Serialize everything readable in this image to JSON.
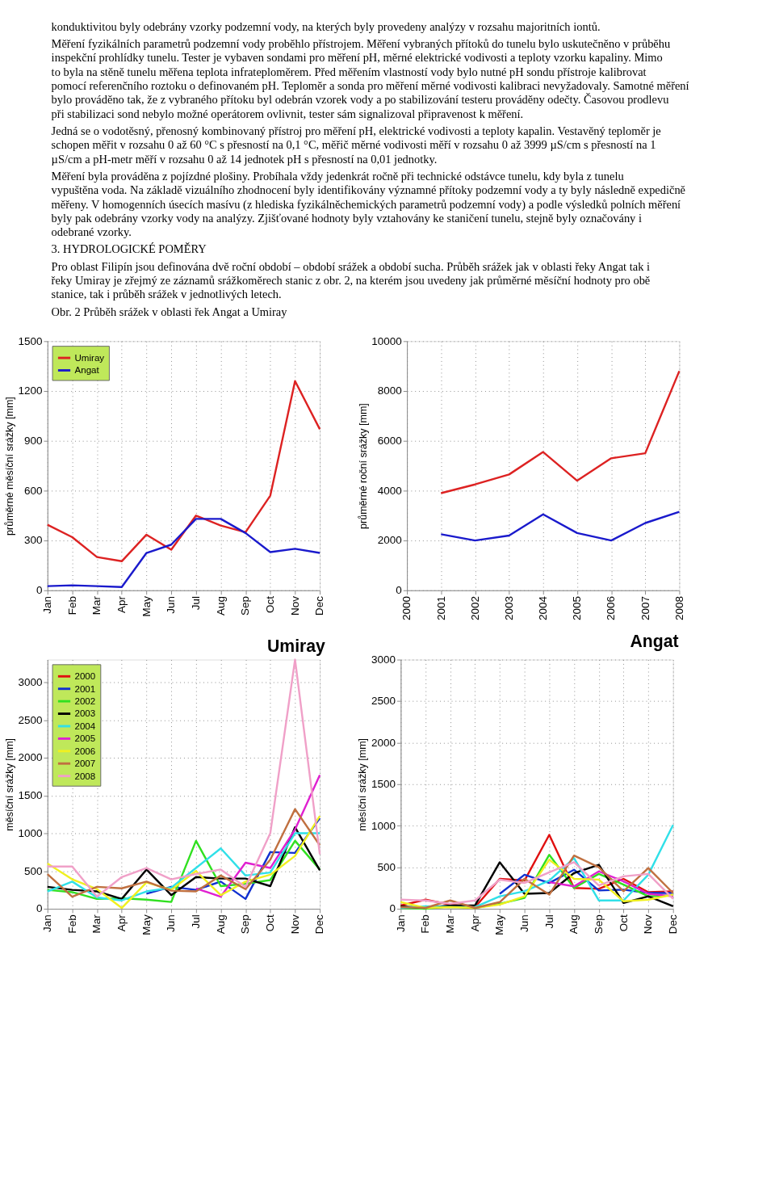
{
  "chart_data": [
    {
      "type": "other",
      "annotations": [
        "konduktivitou byly odebrány vzorky podzemní vody, na kterých byly provedeny analýzy v rozsahu majoritních iontů.",
        "Měření fyzikálních parametrů podzemní vody proběhlo přístrojem. Měření vybraných přítoků do tunelu bylo uskutečněno v průběhu inspekční prohlídky tunelu. Tester je vybaven sondami pro měření pH, měrné elektrické vodivosti a teploty vzorku kapaliny. Mimo to byla na stěně tunelu měřena teplota infrateploměrem. Před měřením vlastností vody bylo nutné pH sondu přístroje kalibrovat pomocí referenčního roztoku o definovaném pH. Teploměr a sonda pro měření měrné vodivosti kalibraci nevyžadovaly. Samotné měření bylo prováděno tak, že z vybraného přítoku byl odebrán vzorek vody a po stabilizování testeru prováděny odečty. Časovou prodlevu při stabilizaci sond nebylo možné operátorem ovlivnit, tester sám signalizoval připravenost k měření.",
        "Jedná se o vodotěsný, přenosný kombinovaný přístroj pro měření pH, elektrické vodivosti a teploty kapalin. Vestavěný teploměr je schopen měřit v rozsahu 0 až 60 °C s přesností na 0,1 °C, měřič měrné vodivosti měří v rozsahu 0 až 3999 µS/cm s přesností na 1 µS/cm a pH-metr měří v rozsahu 0 až 14 jednotek pH s přesností na 0,01 jednotky.",
        "Měření byla prováděna z pojízdné plošiny. Probíhala vždy jedenkrát ročně při technické odstávce tunelu, kdy byla z tunelu vypuštěna voda. Na základě vizuálního zhodnocení byly identifikovány významné přítoky podzemní vody a ty byly následně expedičně měřeny. V homogenních úsecích masívu (z hlediska fyzikálněchemických parametrů podzemní vody) a podle výsledků polních měření byly pak odebrány vzorky vody na analýzy. Zjišťované hodnoty byly vztahovány ke staničení tunelu, stejně byly označovány i odebrané vzorky.",
        "3. HYDROLOGICKÉ POMĚRY",
        "Pro oblast Filipín jsou definována dvě roční období – období srážek a období sucha. Průběh srážek jak v oblasti řeky Angat tak i řeky Umiray je zřejmý ze záznamů srážkoměrech stanic z obr. 2, na kterém jsou uvedeny jak průměrné měsíční hodnoty pro obě stanice, tak i průběh srážek v jednotlivých letech.",
        "Obr. 2  Průběh srážek v oblasti řek Angat a Umiray"
      ]
    },
    {
      "type": "line",
      "ylabel": "průměrné měsíční srážky [mm]",
      "categories": [
        "Jan",
        "Feb",
        "Mar",
        "Apr",
        "May",
        "Jun",
        "Jul",
        "Aug",
        "Sep",
        "Oct",
        "Nov",
        "Dec"
      ],
      "ylim": [
        0,
        1500
      ],
      "yticks": [
        0,
        300,
        600,
        900,
        1200,
        1500
      ],
      "grid": true,
      "legend": "top left",
      "series": [
        {
          "name": "Umiray",
          "color": "#dd2222",
          "values": [
            395,
            320,
            200,
            175,
            335,
            245,
            450,
            390,
            350,
            570,
            1260,
            970
          ]
        },
        {
          "name": "Angat",
          "color": "#1a1acc",
          "values": [
            25,
            30,
            25,
            20,
            225,
            275,
            430,
            430,
            345,
            230,
            250,
            225
          ]
        }
      ]
    },
    {
      "type": "line",
      "ylabel": "průměrné roční srážky [mm]",
      "x": [
        2001,
        2002,
        2003,
        2004,
        2005,
        2006,
        2007,
        2008
      ],
      "xlim": [
        2000,
        2008
      ],
      "xticks": [
        2000,
        2001,
        2002,
        2003,
        2004,
        2005,
        2006,
        2007,
        2008
      ],
      "ylim": [
        0,
        10000
      ],
      "yticks": [
        0,
        2000,
        4000,
        6000,
        8000,
        10000
      ],
      "grid": true,
      "series": [
        {
          "color": "#dd2222",
          "values": [
            3900,
            4250,
            4650,
            5550,
            4400,
            5300,
            5500,
            8800
          ]
        },
        {
          "color": "#1a1acc",
          "values": [
            2250,
            2000,
            2200,
            3050,
            2300,
            2000,
            2700,
            3150
          ]
        }
      ]
    },
    {
      "type": "line",
      "title": "Umiray",
      "ylabel": "měsíční srážky [mm]",
      "categories": [
        "Jan",
        "Feb",
        "Mar",
        "Apr",
        "May",
        "Jun",
        "Jul",
        "Aug",
        "Sep",
        "Oct",
        "Nov",
        "Dec"
      ],
      "ylim": [
        0,
        3300
      ],
      "yticks": [
        0,
        500,
        1000,
        1500,
        2000,
        2500,
        3000
      ],
      "grid": true,
      "legend": "top left",
      "series": [
        {
          "name": "2000",
          "color": "#e01010",
          "values": [
            null,
            null,
            null,
            null,
            null,
            null,
            null,
            null,
            null,
            null,
            null,
            null
          ]
        },
        {
          "name": "2001",
          "color": "#1030d0",
          "values": [
            null,
            null,
            null,
            null,
            200,
            290,
            250,
            360,
            130,
            750,
            740,
            1200
          ]
        },
        {
          "name": "2002",
          "color": "#30e020",
          "values": [
            250,
            220,
            130,
            140,
            120,
            90,
            900,
            300,
            330,
            380,
            900,
            520
          ]
        },
        {
          "name": "2003",
          "color": "#000000",
          "values": [
            290,
            250,
            230,
            130,
            520,
            180,
            420,
            400,
            400,
            300,
            1080,
            510
          ]
        },
        {
          "name": "2004",
          "color": "#30e0e8",
          "values": [
            230,
            360,
            150,
            110,
            230,
            280,
            540,
            800,
            440,
            480,
            1000,
            1000
          ]
        },
        {
          "name": "2005",
          "color": "#e020d0",
          "values": [
            null,
            null,
            null,
            null,
            null,
            null,
            270,
            160,
            610,
            540,
            1050,
            1770
          ]
        },
        {
          "name": "2006",
          "color": "#f0f020",
          "values": [
            600,
            390,
            260,
            10,
            350,
            250,
            500,
            180,
            360,
            450,
            700,
            1230
          ]
        },
        {
          "name": "2007",
          "color": "#c07040",
          "values": [
            460,
            160,
            290,
            270,
            360,
            240,
            230,
            440,
            260,
            650,
            1320,
            840
          ]
        },
        {
          "name": "2008",
          "color": "#f0a0c8",
          "values": [
            560,
            560,
            160,
            420,
            540,
            390,
            460,
            520,
            290,
            1000,
            3300,
            720
          ]
        }
      ]
    },
    {
      "type": "line",
      "title": "Angat",
      "ylabel": "měsíční srážky [mm]",
      "categories": [
        "Jan",
        "Feb",
        "Mar",
        "Apr",
        "May",
        "Jun",
        "Jul",
        "Aug",
        "Sep",
        "Oct",
        "Nov",
        "Dec"
      ],
      "ylim": [
        0,
        3000
      ],
      "yticks": [
        0,
        500,
        1000,
        1500,
        2000,
        2500,
        3000
      ],
      "grid": true,
      "series": [
        {
          "color": "#e01010",
          "values": [
            40,
            110,
            50,
            20,
            360,
            340,
            890,
            250,
            240,
            360,
            200,
            210
          ]
        },
        {
          "color": "#1030d0",
          "values": [
            null,
            null,
            null,
            null,
            180,
            410,
            310,
            470,
            220,
            230,
            190,
            190
          ]
        },
        {
          "color": "#30e020",
          "values": [
            10,
            0,
            30,
            10,
            60,
            130,
            650,
            250,
            420,
            290,
            150,
            160
          ]
        },
        {
          "color": "#000000",
          "values": [
            30,
            10,
            40,
            40,
            560,
            180,
            190,
            430,
            530,
            70,
            150,
            30
          ]
        },
        {
          "color": "#30e0e8",
          "values": [
            10,
            30,
            20,
            20,
            150,
            210,
            340,
            610,
            100,
            100,
            410,
            1010
          ]
        },
        {
          "color": "#e020d0",
          "values": [
            null,
            null,
            null,
            null,
            null,
            null,
            320,
            270,
            450,
            330,
            180,
            150
          ]
        },
        {
          "color": "#f0f020",
          "values": [
            80,
            10,
            20,
            10,
            50,
            150,
            590,
            360,
            350,
            90,
            110,
            170
          ]
        },
        {
          "color": "#c07040",
          "values": [
            20,
            10,
            100,
            10,
            80,
            360,
            170,
            640,
            500,
            210,
            490,
            190
          ]
        },
        {
          "color": "#f0a0c8",
          "values": [
            110,
            100,
            60,
            100,
            350,
            310,
            440,
            560,
            280,
            390,
            420,
            120
          ]
        }
      ]
    }
  ]
}
